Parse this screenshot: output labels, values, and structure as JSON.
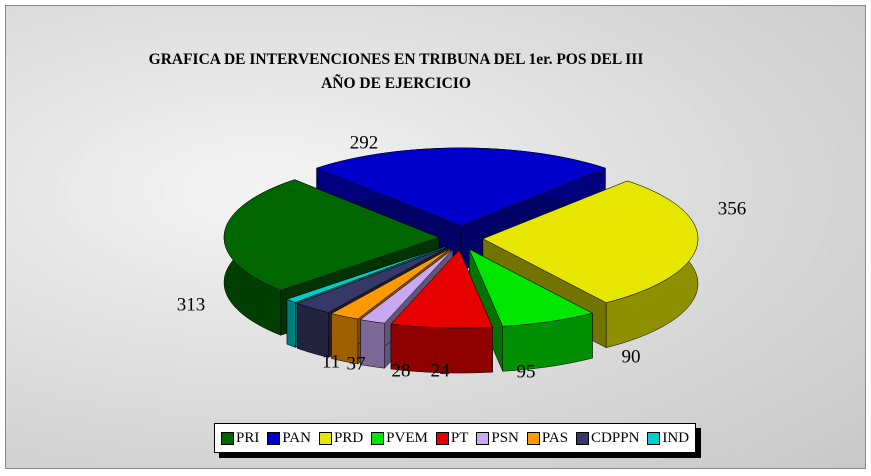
{
  "chart_data": {
    "type": "pie",
    "title": "GRAFICA DE INTERVENCIONES EN TRIBUNA DEL 1er. POS DEL III AÑO DE EJERCICIO",
    "categories": [
      "PAN",
      "PRD",
      "PVEM",
      "PT",
      "PSN",
      "PAS",
      "CDPPN",
      "IND",
      "PRI"
    ],
    "values": [
      292,
      356,
      90,
      95,
      24,
      28,
      37,
      11,
      313
    ],
    "colors": [
      "#0000cc",
      "#e6e600",
      "#00e600",
      "#e60000",
      "#c8a8f0",
      "#ff9900",
      "#383868",
      "#00cccc",
      "#006600"
    ],
    "legend_order": [
      8,
      0,
      1,
      2,
      3,
      4,
      5,
      6,
      7
    ]
  }
}
